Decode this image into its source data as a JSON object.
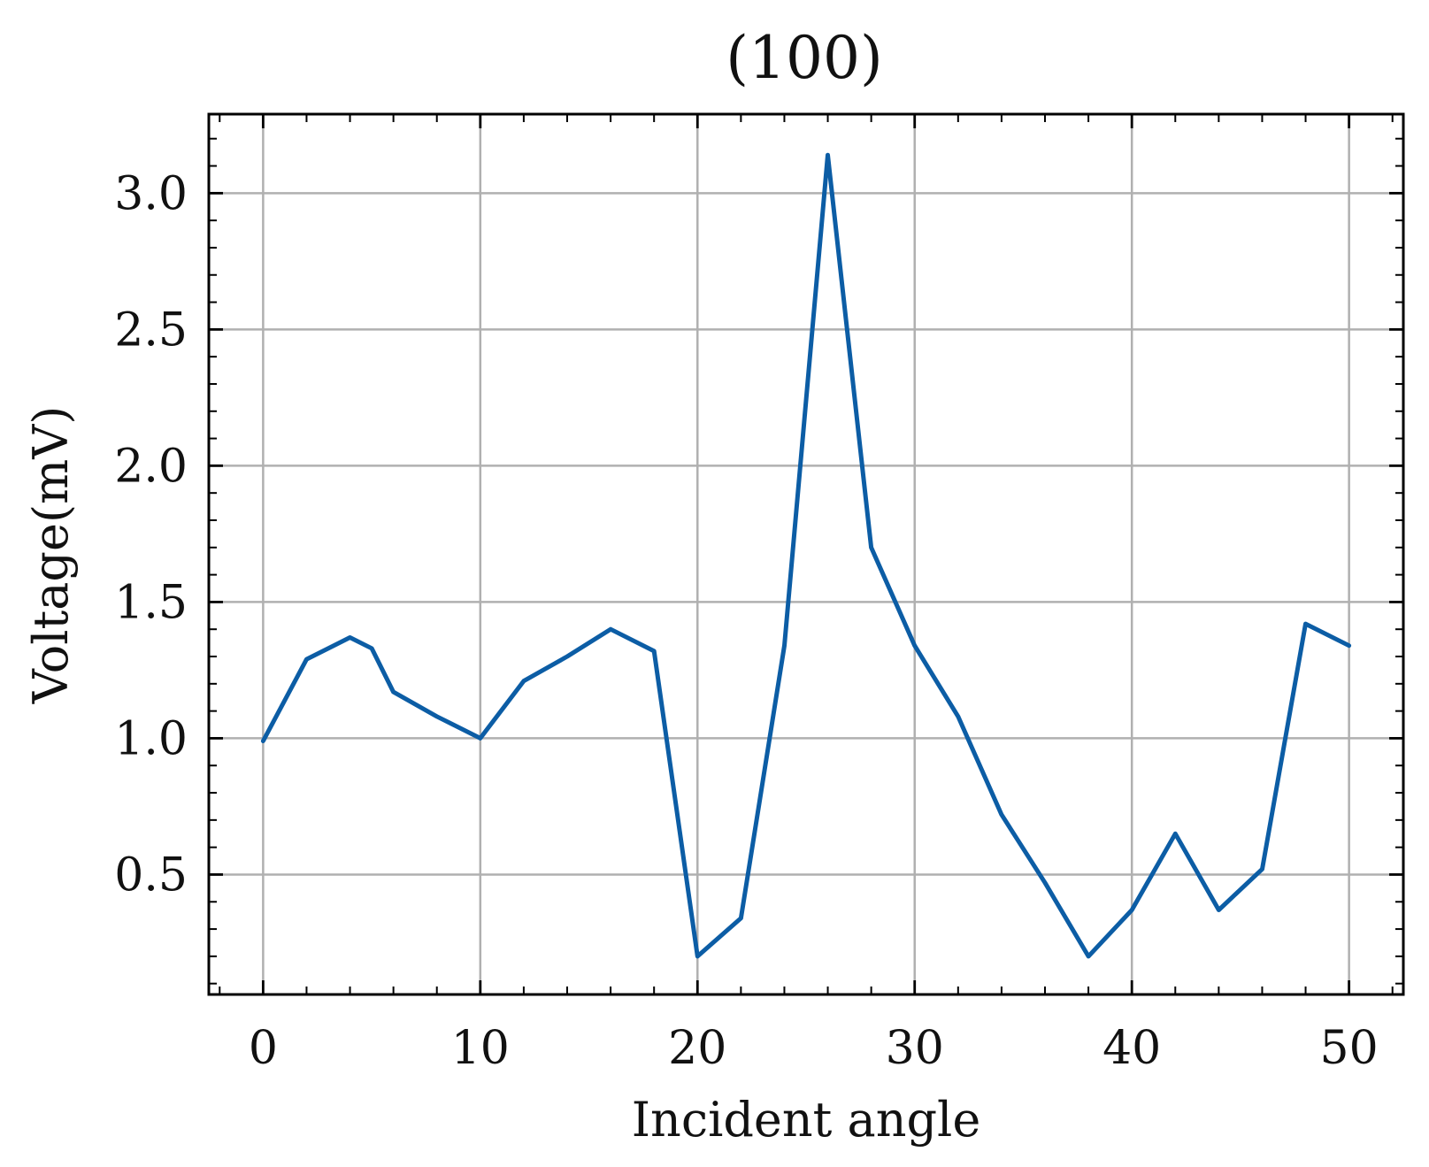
{
  "chart_data": {
    "type": "line",
    "title": "(100)",
    "xlabel": "Incident angle",
    "ylabel": "Voltage(mV)",
    "xlim": [
      -2.5,
      52.5
    ],
    "ylim": [
      0.06,
      3.29
    ],
    "xticks": [
      0,
      10,
      20,
      30,
      40,
      50
    ],
    "xtick_labels": [
      "0",
      "10",
      "20",
      "30",
      "40",
      "50"
    ],
    "yticks": [
      0.5,
      1.0,
      1.5,
      2.0,
      2.5,
      3.0
    ],
    "ytick_labels": [
      "0.5",
      "1.0",
      "1.5",
      "2.0",
      "2.5",
      "3.0"
    ],
    "grid": true,
    "series": [
      {
        "color": "#0c5da5",
        "x": [
          0,
          2,
          4,
          5,
          6,
          8,
          10,
          12,
          14,
          16,
          18,
          20,
          22,
          24,
          26,
          28,
          30,
          32,
          34,
          36,
          38,
          40,
          42,
          44,
          46,
          48,
          50
        ],
        "y": [
          0.99,
          1.29,
          1.37,
          1.33,
          1.17,
          1.08,
          1.0,
          1.21,
          1.3,
          1.4,
          1.32,
          0.2,
          0.34,
          1.34,
          3.14,
          1.7,
          1.34,
          1.08,
          0.72,
          0.47,
          0.2,
          0.37,
          0.65,
          0.37,
          0.52,
          1.42,
          1.34
        ]
      }
    ]
  }
}
